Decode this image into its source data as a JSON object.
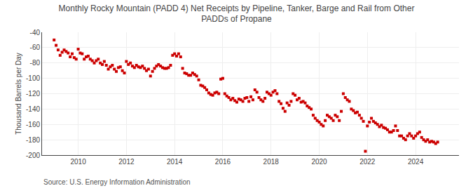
{
  "chart_data": {
    "type": "scatter",
    "title": "Monthly Rocky Mountain (PADD 4) Net Receipts by Pipeline, Tanker, Barge and Rail from Other\nPADDs of Propane",
    "ylabel": "Thousand Barrels per Day",
    "annotations": [
      "Source: U.S. Energy Information Administration"
    ],
    "color": "#cc0000",
    "marker": "square",
    "grid": true,
    "xlim": [
      2008.5,
      2025.8
    ],
    "xticks": [
      2010,
      2012,
      2014,
      2016,
      2018,
      2020,
      2022,
      2024
    ],
    "ylim": [
      -200,
      -40
    ],
    "yticks": [
      -200,
      -180,
      -160,
      -140,
      -120,
      -100,
      -80,
      -60,
      -40
    ],
    "x": [
      2009.0,
      2009.083,
      2009.167,
      2009.25,
      2009.333,
      2009.417,
      2009.5,
      2009.583,
      2009.667,
      2009.75,
      2009.833,
      2009.917,
      2010.0,
      2010.083,
      2010.167,
      2010.25,
      2010.333,
      2010.417,
      2010.5,
      2010.583,
      2010.667,
      2010.75,
      2010.833,
      2010.917,
      2011.0,
      2011.083,
      2011.167,
      2011.25,
      2011.333,
      2011.417,
      2011.5,
      2011.583,
      2011.667,
      2011.75,
      2011.833,
      2011.917,
      2012.0,
      2012.083,
      2012.167,
      2012.25,
      2012.333,
      2012.417,
      2012.5,
      2012.583,
      2012.667,
      2012.75,
      2012.833,
      2012.917,
      2013.0,
      2013.083,
      2013.167,
      2013.25,
      2013.333,
      2013.417,
      2013.5,
      2013.583,
      2013.667,
      2013.75,
      2013.833,
      2013.917,
      2014.0,
      2014.083,
      2014.167,
      2014.25,
      2014.333,
      2014.417,
      2014.5,
      2014.583,
      2014.667,
      2014.75,
      2014.833,
      2014.917,
      2015.0,
      2015.083,
      2015.167,
      2015.25,
      2015.333,
      2015.417,
      2015.5,
      2015.583,
      2015.667,
      2015.75,
      2015.833,
      2015.917,
      2016.0,
      2016.083,
      2016.167,
      2016.25,
      2016.333,
      2016.417,
      2016.5,
      2016.583,
      2016.667,
      2016.75,
      2016.833,
      2016.917,
      2017.0,
      2017.083,
      2017.167,
      2017.25,
      2017.333,
      2017.417,
      2017.5,
      2017.583,
      2017.667,
      2017.75,
      2017.833,
      2017.917,
      2018.0,
      2018.083,
      2018.167,
      2018.25,
      2018.333,
      2018.417,
      2018.5,
      2018.583,
      2018.667,
      2018.75,
      2018.833,
      2018.917,
      2019.0,
      2019.083,
      2019.167,
      2019.25,
      2019.333,
      2019.417,
      2019.5,
      2019.583,
      2019.667,
      2019.75,
      2019.833,
      2019.917,
      2020.0,
      2020.083,
      2020.167,
      2020.25,
      2020.333,
      2020.417,
      2020.5,
      2020.583,
      2020.667,
      2020.75,
      2020.833,
      2020.917,
      2021.0,
      2021.083,
      2021.167,
      2021.25,
      2021.333,
      2021.417,
      2021.5,
      2021.583,
      2021.667,
      2021.75,
      2021.833,
      2021.917,
      2022.0,
      2022.083,
      2022.167,
      2022.25,
      2022.333,
      2022.417,
      2022.5,
      2022.583,
      2022.667,
      2022.75,
      2022.833,
      2022.917,
      2023.0,
      2023.083,
      2023.167,
      2023.25,
      2023.333,
      2023.417,
      2023.5,
      2023.583,
      2023.667,
      2023.75,
      2023.833,
      2023.917,
      2024.0,
      2024.083,
      2024.167,
      2024.25,
      2024.333,
      2024.417,
      2024.5,
      2024.583,
      2024.667,
      2024.75,
      2024.833,
      2024.917
    ],
    "values": [
      -50,
      -57,
      -63,
      -70,
      -66,
      -63,
      -65,
      -67,
      -72,
      -68,
      -73,
      -75,
      -62,
      -67,
      -68,
      -75,
      -72,
      -71,
      -75,
      -77,
      -80,
      -77,
      -75,
      -80,
      -82,
      -78,
      -83,
      -88,
      -85,
      -83,
      -88,
      -91,
      -86,
      -85,
      -90,
      -93,
      -78,
      -82,
      -80,
      -84,
      -86,
      -83,
      -85,
      -86,
      -84,
      -87,
      -90,
      -88,
      -97,
      -91,
      -87,
      -84,
      -82,
      -84,
      -86,
      -87,
      -87,
      -86,
      -83,
      -70,
      -68,
      -71,
      -68,
      -72,
      -87,
      -93,
      -94,
      -96,
      -96,
      -93,
      -95,
      -97,
      -102,
      -109,
      -110,
      -112,
      -115,
      -119,
      -121,
      -122,
      -119,
      -118,
      -120,
      -101,
      -100,
      -120,
      -123,
      -125,
      -128,
      -126,
      -129,
      -131,
      -127,
      -128,
      -130,
      -126,
      -125,
      -130,
      -124,
      -128,
      -115,
      -118,
      -125,
      -128,
      -130,
      -126,
      -118,
      -120,
      -122,
      -118,
      -116,
      -120,
      -130,
      -133,
      -139,
      -143,
      -132,
      -135,
      -130,
      -120,
      -122,
      -128,
      -126,
      -131,
      -130,
      -132,
      -136,
      -138,
      -140,
      -148,
      -152,
      -155,
      -157,
      -160,
      -162,
      -155,
      -148,
      -150,
      -152,
      -155,
      -148,
      -150,
      -155,
      -143,
      -120,
      -125,
      -128,
      -130,
      -140,
      -142,
      -145,
      -144,
      -148,
      -152,
      -156,
      -195,
      -162,
      -157,
      -152,
      -156,
      -158,
      -160,
      -163,
      -161,
      -164,
      -165,
      -167,
      -170,
      -170,
      -168,
      -162,
      -168,
      -175,
      -175,
      -178,
      -180,
      -175,
      -172,
      -175,
      -178,
      -175,
      -172,
      -170,
      -177,
      -180,
      -182,
      -180,
      -183,
      -182,
      -183,
      -185,
      -183
    ]
  }
}
